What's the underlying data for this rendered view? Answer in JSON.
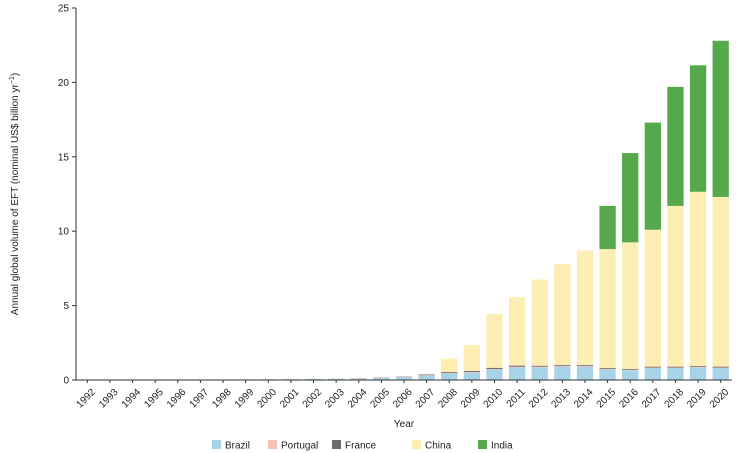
{
  "chart_data": {
    "type": "bar",
    "stacked": true,
    "title": "",
    "xlabel": "Year",
    "ylabel": "Annual global volume of EFT (nominal US$ billion yr",
    "ylabel_sup": "−1",
    "ylabel_close": ")",
    "ylim": [
      0,
      25
    ],
    "yticks": [
      "0",
      "5",
      "10",
      "15",
      "20",
      "25"
    ],
    "grid": false,
    "legend_position": "bottom",
    "categories": [
      "1992",
      "1993",
      "1994",
      "1995",
      "1996",
      "1997",
      "1998",
      "1999",
      "2000",
      "2001",
      "2002",
      "2003",
      "2004",
      "2005",
      "2006",
      "2007",
      "2008",
      "2009",
      "2010",
      "2011",
      "2012",
      "2013",
      "2014",
      "2015",
      "2016",
      "2017",
      "2018",
      "2019",
      "2020"
    ],
    "series": [
      {
        "name": "Brazil",
        "color": "#a6d3e8",
        "values": [
          0.01,
          0.01,
          0.01,
          0.01,
          0.01,
          0.02,
          0.03,
          0.04,
          0.05,
          0.06,
          0.07,
          0.09,
          0.12,
          0.18,
          0.25,
          0.32,
          0.45,
          0.5,
          0.7,
          0.85,
          0.85,
          0.9,
          0.9,
          0.7,
          0.65,
          0.8,
          0.8,
          0.85,
          0.8
        ]
      },
      {
        "name": "Portugal",
        "color": "#f5c1b3",
        "values": [
          0,
          0,
          0,
          0,
          0,
          0,
          0,
          0,
          0,
          0,
          0,
          0,
          0.01,
          0.01,
          0.01,
          0.02,
          0.03,
          0.04,
          0.04,
          0.04,
          0.04,
          0.04,
          0.04,
          0.04,
          0.04,
          0.04,
          0.04,
          0.04,
          0.04
        ]
      },
      {
        "name": "France",
        "color": "#6d6d6d",
        "values": [
          0,
          0,
          0,
          0,
          0,
          0,
          0,
          0,
          0,
          0,
          0,
          0,
          0,
          0,
          0,
          0.03,
          0.06,
          0.07,
          0.08,
          0.08,
          0.07,
          0.06,
          0.06,
          0.06,
          0.06,
          0.06,
          0.06,
          0.06,
          0.06
        ]
      },
      {
        "name": "China",
        "color": "#fdeeb3",
        "values": [
          0,
          0,
          0,
          0,
          0,
          0,
          0,
          0,
          0,
          0,
          0,
          0,
          0,
          0,
          0,
          0,
          0.9,
          1.75,
          3.6,
          4.6,
          5.8,
          6.8,
          7.7,
          8.0,
          8.5,
          9.2,
          10.8,
          11.7,
          11.4
        ]
      },
      {
        "name": "India",
        "color": "#55a94a",
        "values": [
          0,
          0,
          0,
          0,
          0,
          0,
          0,
          0,
          0,
          0,
          0,
          0,
          0,
          0,
          0,
          0,
          0,
          0,
          0,
          0,
          0,
          0,
          0,
          2.9,
          6.0,
          7.2,
          8.0,
          8.5,
          10.5
        ]
      }
    ]
  }
}
